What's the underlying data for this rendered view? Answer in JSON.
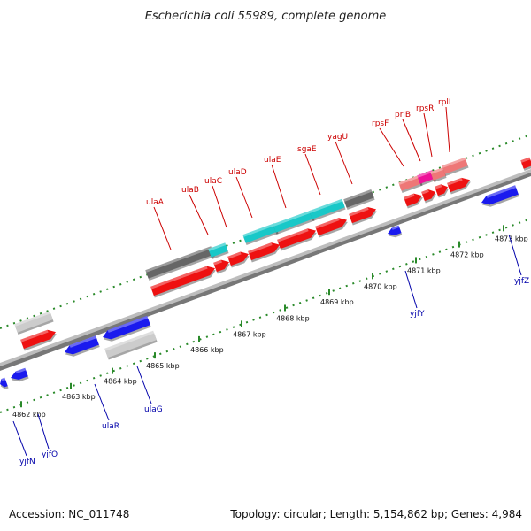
{
  "title": "Escherichia coli 55989, complete genome",
  "footer": {
    "accession": "Accession: NC_011748",
    "summary": "Topology: circular; Length: 5,154,862 bp; Genes: 4,984"
  },
  "colors": {
    "forward_gene": "#ee1111",
    "reverse_gene": "#1a1aee",
    "operon_cyan": "#19c8c8",
    "operon_gray": "#666666",
    "pseudo_light": "#cccccc",
    "ribosomal_pink": "#ee7777",
    "pri_magenta": "#ee1199",
    "dotted_track": "#2a8a2a",
    "backbone": "#888888",
    "forward_label": "#cc0000",
    "reverse_label": "#0000aa"
  },
  "scale_ticks": [
    "4862 kbp",
    "4863 kbp",
    "4864 kbp",
    "4865 kbp",
    "4866 kbp",
    "4867 kbp",
    "4868 kbp",
    "4869 kbp",
    "4870 kbp",
    "4871 kbp",
    "4872 kbp",
    "4873 kbp"
  ],
  "forward_gene_labels": [
    "ulaA",
    "ulaB",
    "ulaC",
    "ulaD",
    "ulaE",
    "sgaE",
    "yagU",
    "rpsF",
    "priB",
    "rpsR",
    "rplI"
  ],
  "reverse_gene_labels": [
    "yjfN",
    "yjfO",
    "ulaR",
    "ulaG",
    "yjfY",
    "yjfZ"
  ]
}
